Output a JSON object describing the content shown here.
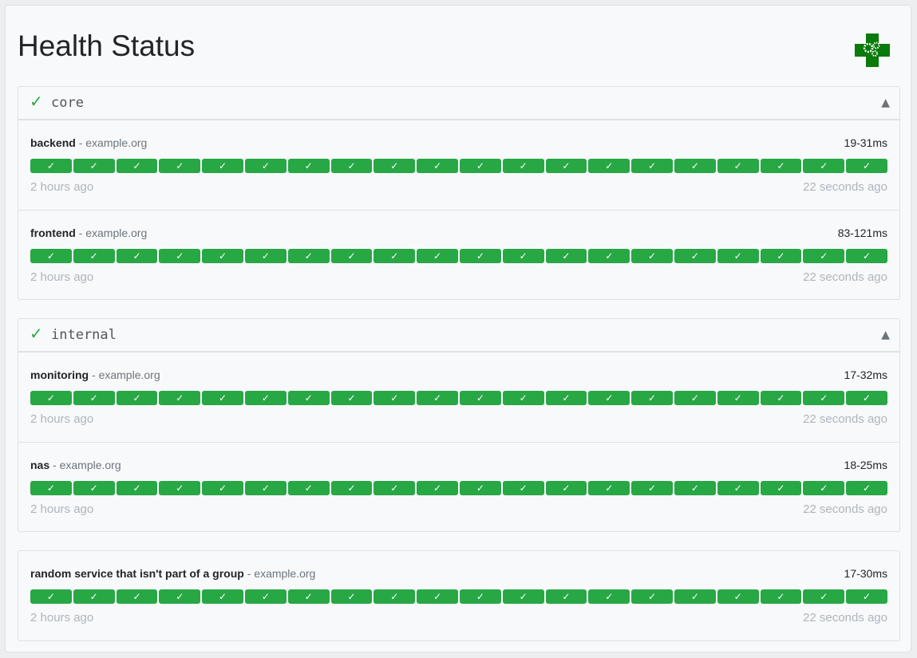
{
  "title": "Health Status",
  "colors": {
    "success": "#28a745",
    "logo": "#0a7a0a"
  },
  "logo_icon": "health-cross-gears-icon",
  "groups": [
    {
      "name": "core",
      "status_icon": "check-icon",
      "toggle": "▲",
      "services": [
        {
          "name": "backend",
          "host": "example.org",
          "response": "19-31ms",
          "oldest": "2 hours ago",
          "newest": "22 seconds ago",
          "results": 20
        },
        {
          "name": "frontend",
          "host": "example.org",
          "response": "83-121ms",
          "oldest": "2 hours ago",
          "newest": "22 seconds ago",
          "results": 20
        }
      ]
    },
    {
      "name": "internal",
      "status_icon": "check-icon",
      "toggle": "▲",
      "services": [
        {
          "name": "monitoring",
          "host": "example.org",
          "response": "17-32ms",
          "oldest": "2 hours ago",
          "newest": "22 seconds ago",
          "results": 20
        },
        {
          "name": "nas",
          "host": "example.org",
          "response": "18-25ms",
          "oldest": "2 hours ago",
          "newest": "22 seconds ago",
          "results": 20
        }
      ]
    },
    {
      "name": "",
      "services": [
        {
          "name": "random service that isn't part of a group",
          "host": "example.org",
          "response": "17-30ms",
          "oldest": "2 hours ago",
          "newest": "22 seconds ago",
          "results": 20
        }
      ]
    }
  ],
  "separator": " - ",
  "check_glyph": "✓"
}
